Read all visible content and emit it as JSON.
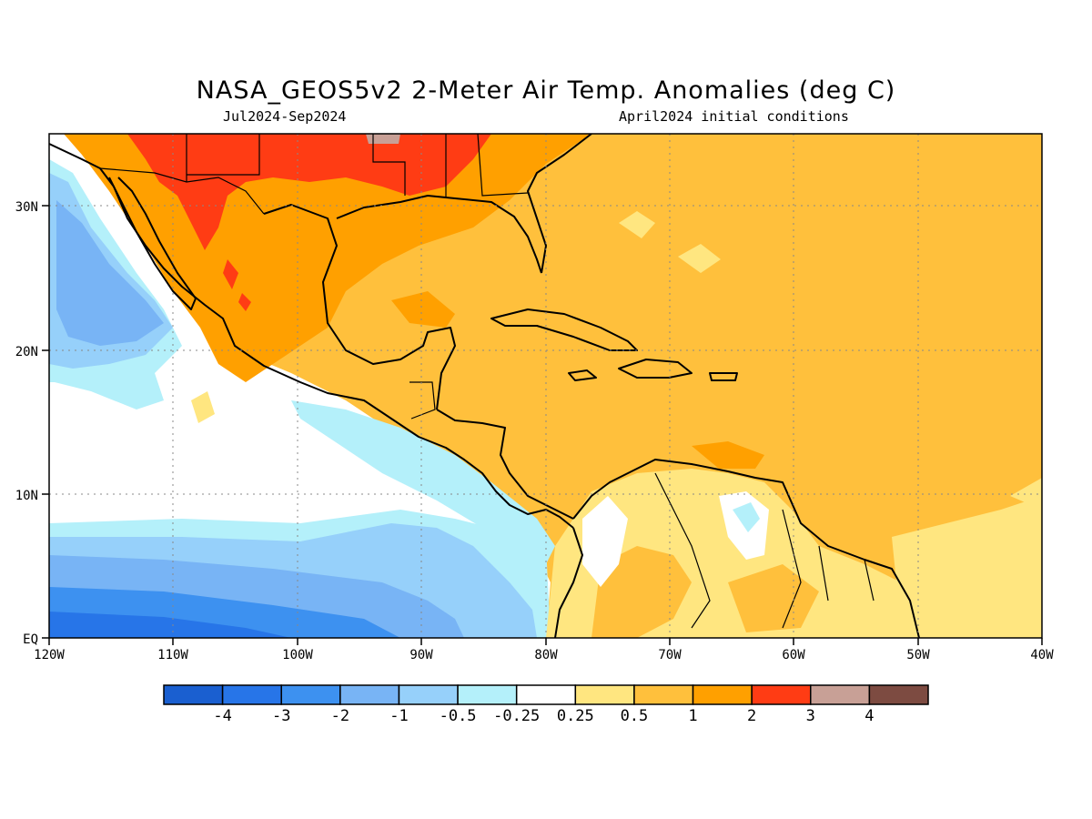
{
  "title": "NASA_GEOS5v2 2-Meter Air Temp. Anomalies (deg C)",
  "subtitle_left": "Jul2024-Sep2024",
  "subtitle_right": "April2024 initial conditions",
  "map": {
    "lon_range": [
      -120,
      -40
    ],
    "lat_range": [
      0,
      35
    ],
    "x_ticks": [
      "120W",
      "110W",
      "100W",
      "90W",
      "80W",
      "70W",
      "60W",
      "50W",
      "40W"
    ],
    "y_ticks": [
      "EQ",
      "10N",
      "20N",
      "30N"
    ],
    "gridlines": "dotted"
  },
  "colorbar": {
    "labels": [
      "-4",
      "-3",
      "-2",
      "-1",
      "-0.5",
      "-0.25",
      "0.25",
      "0.5",
      "1",
      "2",
      "3",
      "4"
    ],
    "colors": [
      "#1a5fd0",
      "#2775e8",
      "#3d91f0",
      "#78b4f5",
      "#96d0fa",
      "#b4f0fa",
      "#ffffff",
      "#ffe680",
      "#ffc03c",
      "#ffa000",
      "#ff3c14",
      "#c8a096",
      "#7d4b41"
    ]
  },
  "field_colors": {
    "land_outline": "#000000",
    "warm_strong": "#ff3c14",
    "warm_mid": "#ffa000",
    "warm_light": "#ffc03c",
    "warm_pale": "#ffe680",
    "neutral": "#ffffff",
    "cool_pale": "#b4f0fa",
    "cool_light": "#96d0fa",
    "cool_mid": "#78b4f5",
    "cool_strong": "#3d91f0"
  }
}
